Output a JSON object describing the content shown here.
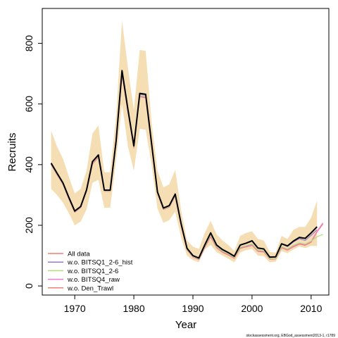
{
  "chart_data": {
    "type": "line",
    "xlabel": "Year",
    "ylabel": "Recruits",
    "xlim": [
      1964.5,
      2013
    ],
    "ylim": [
      -30,
      915
    ],
    "x_ticks": [
      1970,
      1980,
      1990,
      2000,
      2010
    ],
    "y_ticks": [
      0,
      200,
      400,
      600,
      800
    ],
    "x_tick_labels": [
      "1970",
      "1980",
      "1990",
      "2000",
      "2010"
    ],
    "y_tick_labels": [
      "0",
      "200",
      "400",
      "600",
      "800"
    ],
    "grid": false,
    "legend_position": "bottom-left",
    "footnote": "stockassessment.org, EBGod_assessment2013-1, r1789",
    "band": {
      "color": "#f5deb3",
      "x": [
        1966,
        1967,
        1968,
        1969,
        1970,
        1971,
        1972,
        1973,
        1974,
        1975,
        1976,
        1977,
        1978,
        1979,
        1980,
        1981,
        1982,
        1983,
        1984,
        1985,
        1986,
        1987,
        1988,
        1989,
        1990,
        1991,
        1992,
        1993,
        1994,
        1995,
        1996,
        1997,
        1998,
        1999,
        2000,
        2001,
        2002,
        2003,
        2004,
        2005,
        2006,
        2007,
        2008,
        2009,
        2010,
        2011
      ],
      "upper": [
        512,
        460,
        420,
        360,
        305,
        320,
        380,
        502,
        530,
        375,
        375,
        560,
        875,
        720,
        580,
        778,
        775,
        540,
        380,
        325,
        335,
        383,
        250,
        150,
        130,
        122,
        175,
        215,
        170,
        150,
        135,
        115,
        165,
        175,
        180,
        155,
        150,
        112,
        110,
        165,
        155,
        185,
        195,
        195,
        225,
        282
      ],
      "lower": [
        320,
        300,
        275,
        240,
        200,
        212,
        252,
        340,
        350,
        258,
        258,
        415,
        600,
        460,
        380,
        518,
        515,
        400,
        255,
        208,
        217,
        245,
        160,
        100,
        85,
        78,
        120,
        135,
        112,
        100,
        90,
        78,
        110,
        118,
        122,
        100,
        98,
        78,
        80,
        115,
        108,
        120,
        130,
        125,
        132,
        132
      ]
    },
    "series": [
      {
        "name": "All data",
        "color": "#000000",
        "width": 2,
        "x": [
          1966,
          1967,
          1968,
          1969,
          1970,
          1971,
          1972,
          1973,
          1974,
          1975,
          1976,
          1977,
          1978,
          1979,
          1980,
          1981,
          1982,
          1983,
          1984,
          1985,
          1986,
          1987,
          1988,
          1989,
          1990,
          1991,
          1992,
          1993,
          1994,
          1995,
          1996,
          1997,
          1998,
          1999,
          2000,
          2001,
          2002,
          2003,
          2004,
          2005,
          2006,
          2007,
          2008,
          2009,
          2010,
          2011
        ],
        "values": [
          405,
          372,
          340,
          292,
          247,
          262,
          317,
          410,
          432,
          316,
          316,
          478,
          710,
          582,
          462,
          635,
          632,
          470,
          310,
          257,
          265,
          303,
          205,
          124,
          100,
          92,
          135,
          175,
          135,
          120,
          110,
          98,
          135,
          141,
          149,
          125,
          122,
          95,
          96,
          139,
          132,
          148,
          160,
          157,
          175,
          195
        ]
      },
      {
        "name": "w.o. BITSQ1_2-6_hist",
        "color": "#9a78d4",
        "width": 1.2,
        "x": [
          1966,
          1967,
          1968,
          1969,
          1970,
          1971,
          1972,
          1973,
          1974,
          1975,
          1976,
          1977,
          1978,
          1979,
          1980,
          1981,
          1982,
          1983,
          1984,
          1985,
          1986,
          1987,
          1988,
          1989,
          1990,
          1991,
          1992,
          1993,
          1994,
          1995,
          1996,
          1997,
          1998,
          1999,
          2000,
          2001,
          2002,
          2003,
          2004,
          2005,
          2006,
          2007,
          2008,
          2009,
          2010,
          2011
        ],
        "values": [
          403,
          370,
          338,
          290,
          246,
          261,
          315,
          408,
          430,
          315,
          315,
          476,
          707,
          580,
          460,
          632,
          629,
          468,
          309,
          256,
          264,
          301,
          204,
          123,
          99,
          91,
          134,
          174,
          134,
          119,
          109,
          97,
          134,
          140,
          147,
          124,
          121,
          94,
          95,
          138,
          130,
          145,
          156,
          150,
          167,
          185
        ]
      },
      {
        "name": "w.o. BITSQ1_2-6",
        "color": "#b5dc7c",
        "width": 1.2,
        "x": [
          1966,
          1967,
          1968,
          1969,
          1970,
          1971,
          1972,
          1973,
          1974,
          1975,
          1976,
          1977,
          1978,
          1979,
          1980,
          1981,
          1982,
          1983,
          1984,
          1985,
          1986,
          1987,
          1988,
          1989,
          1990,
          1991,
          1992,
          1993,
          1994,
          1995,
          1996,
          1997,
          1998,
          1999,
          2000,
          2001,
          2002,
          2003,
          2004,
          2005,
          2006,
          2007,
          2008,
          2009,
          2010,
          2011,
          2012
        ],
        "values": [
          402,
          369,
          337,
          289,
          245,
          260,
          314,
          406,
          428,
          314,
          314,
          474,
          704,
          578,
          458,
          628,
          625,
          466,
          307,
          254,
          262,
          299,
          202,
          121,
          97,
          89,
          130,
          168,
          130,
          115,
          106,
          94,
          128,
          133,
          139,
          118,
          116,
          90,
          91,
          130,
          122,
          134,
          142,
          138,
          148,
          162,
          170
        ]
      },
      {
        "name": "w.o. BITSQ4_raw",
        "color": "#f07cc8",
        "width": 1.2,
        "x": [
          1966,
          1967,
          1968,
          1969,
          1970,
          1971,
          1972,
          1973,
          1974,
          1975,
          1976,
          1977,
          1978,
          1979,
          1980,
          1981,
          1982,
          1983,
          1984,
          1985,
          1986,
          1987,
          1988,
          1989,
          1990,
          1991,
          1992,
          1993,
          1994,
          1995,
          1996,
          1997,
          1998,
          1999,
          2000,
          2001,
          2002,
          2003,
          2004,
          2005,
          2006,
          2007,
          2008,
          2009,
          2010,
          2011,
          2012
        ],
        "values": [
          401,
          368,
          336,
          288,
          244,
          259,
          313,
          404,
          426,
          313,
          313,
          472,
          700,
          575,
          456,
          626,
          622,
          463,
          306,
          253,
          261,
          297,
          200,
          120,
          96,
          88,
          128,
          165,
          128,
          113,
          104,
          93,
          126,
          131,
          136,
          116,
          114,
          89,
          90,
          128,
          120,
          131,
          140,
          136,
          146,
          180,
          208
        ]
      },
      {
        "name": "w.o. Den_Trawl",
        "color": "#f08070",
        "width": 1.2,
        "x": [
          1966,
          1967,
          1968,
          1969,
          1970,
          1971,
          1972,
          1973,
          1974,
          1975,
          1976,
          1977,
          1978,
          1979,
          1980,
          1981,
          1982,
          1983,
          1984,
          1985,
          1986,
          1987,
          1988,
          1989,
          1990,
          1991,
          1992,
          1993,
          1994,
          1995,
          1996,
          1997,
          1998,
          1999,
          2000,
          2001,
          2002,
          2003,
          2004,
          2005,
          2006,
          2007,
          2008,
          2009,
          2010,
          2011,
          2012
        ],
        "values": [
          400,
          367,
          335,
          287,
          243,
          258,
          312,
          402,
          424,
          312,
          312,
          470,
          698,
          573,
          455,
          624,
          620,
          461,
          305,
          252,
          260,
          296,
          199,
          119,
          95,
          87,
          126,
          162,
          126,
          111,
          102,
          91,
          124,
          129,
          134,
          114,
          112,
          88,
          89,
          126,
          118,
          129,
          138,
          134,
          144,
          178,
          204
        ]
      }
    ]
  }
}
